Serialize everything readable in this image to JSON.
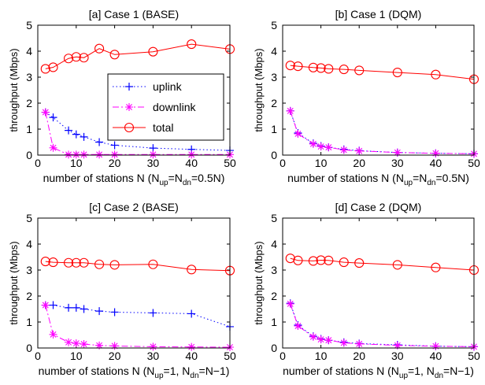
{
  "chart_data": [
    {
      "type": "line",
      "title": "[a] Case 1 (BASE)",
      "xlabel_main": "number of stations N (N",
      "xlabel_sub1": "up",
      "xlabel_mid": "=N",
      "xlabel_sub2": "dn",
      "xlabel_end": "=0.5N)",
      "ylabel": "throughput (Mbps)",
      "xlim": [
        0,
        50
      ],
      "ylim": [
        0,
        5
      ],
      "xticks": [
        0,
        10,
        20,
        30,
        40,
        50
      ],
      "yticks": [
        0,
        1,
        2,
        3,
        4,
        5
      ],
      "legend": {
        "placement": "center-right",
        "entries": [
          "uplink",
          "downlink",
          "total"
        ]
      },
      "series": [
        {
          "name": "uplink",
          "color": "#0000ff",
          "marker": "plus",
          "dash": "dotted",
          "x": [
            2,
            4,
            8,
            10,
            12,
            16,
            20,
            30,
            40,
            50
          ],
          "y": [
            1.65,
            1.45,
            0.95,
            0.8,
            0.7,
            0.5,
            0.38,
            0.27,
            0.22,
            0.18
          ]
        },
        {
          "name": "downlink",
          "color": "#ff00ff",
          "marker": "star",
          "dash": "dashdot",
          "x": [
            2,
            4,
            8,
            10,
            12,
            16,
            20,
            30,
            40,
            50
          ],
          "y": [
            1.65,
            0.28,
            0.02,
            0.02,
            0.02,
            0.02,
            0.02,
            0.02,
            0.02,
            0.02
          ]
        },
        {
          "name": "total",
          "color": "#ff0000",
          "marker": "circle",
          "dash": "solid",
          "x": [
            2,
            4,
            8,
            10,
            12,
            16,
            20,
            30,
            40,
            50
          ],
          "y": [
            3.32,
            3.38,
            3.72,
            3.78,
            3.75,
            4.1,
            3.87,
            3.98,
            4.27,
            4.08
          ]
        }
      ]
    },
    {
      "type": "line",
      "title": "[b] Case 1 (DQM)",
      "xlabel_main": "number of stations N (N",
      "xlabel_sub1": "up",
      "xlabel_mid": "=N",
      "xlabel_sub2": "dn",
      "xlabel_end": "=0.5N)",
      "ylabel": "throughput (Mbps)",
      "xlim": [
        0,
        50
      ],
      "ylim": [
        0,
        5
      ],
      "xticks": [
        0,
        10,
        20,
        30,
        40,
        50
      ],
      "yticks": [
        0,
        1,
        2,
        3,
        4,
        5
      ],
      "legend": null,
      "series": [
        {
          "color": "#0000ff",
          "marker": "plus",
          "dash": "dotted",
          "x": [
            2,
            4,
            8,
            10,
            12,
            16,
            20,
            30,
            40,
            50
          ],
          "y": [
            1.7,
            0.85,
            0.45,
            0.35,
            0.3,
            0.22,
            0.17,
            0.1,
            0.07,
            0.05
          ]
        },
        {
          "color": "#ff00ff",
          "marker": "star",
          "dash": "dashdot",
          "x": [
            2,
            4,
            8,
            10,
            12,
            16,
            20,
            30,
            40,
            50
          ],
          "y": [
            1.7,
            0.82,
            0.43,
            0.33,
            0.3,
            0.2,
            0.16,
            0.1,
            0.07,
            0.05
          ]
        },
        {
          "color": "#ff0000",
          "marker": "circle",
          "dash": "solid",
          "x": [
            2,
            4,
            8,
            10,
            12,
            16,
            20,
            30,
            40,
            50
          ],
          "y": [
            3.45,
            3.42,
            3.37,
            3.35,
            3.32,
            3.3,
            3.26,
            3.18,
            3.1,
            2.92
          ]
        }
      ]
    },
    {
      "type": "line",
      "title": "[c] Case 2 (BASE)",
      "xlabel_main": "number of stations N (N",
      "xlabel_sub1": "up",
      "xlabel_mid": "=1, N",
      "xlabel_sub2": "dn",
      "xlabel_end": "=N−1)",
      "ylabel": "throughput (Mbps)",
      "xlim": [
        0,
        50
      ],
      "ylim": [
        0,
        5
      ],
      "xticks": [
        0,
        10,
        20,
        30,
        40,
        50
      ],
      "yticks": [
        0,
        1,
        2,
        3,
        4,
        5
      ],
      "legend": null,
      "series": [
        {
          "color": "#0000ff",
          "marker": "plus",
          "dash": "dotted",
          "x": [
            2,
            4,
            8,
            10,
            12,
            16,
            20,
            30,
            40,
            50
          ],
          "y": [
            1.65,
            1.65,
            1.55,
            1.55,
            1.5,
            1.42,
            1.38,
            1.35,
            1.32,
            0.82
          ]
        },
        {
          "color": "#ff00ff",
          "marker": "star",
          "dash": "dashdot",
          "x": [
            2,
            4,
            8,
            10,
            12,
            16,
            20,
            30,
            40,
            50
          ],
          "y": [
            1.65,
            0.52,
            0.22,
            0.18,
            0.15,
            0.1,
            0.08,
            0.05,
            0.04,
            0.03
          ]
        },
        {
          "color": "#ff0000",
          "marker": "circle",
          "dash": "solid",
          "x": [
            2,
            4,
            8,
            10,
            12,
            16,
            20,
            30,
            40,
            50
          ],
          "y": [
            3.33,
            3.3,
            3.28,
            3.28,
            3.28,
            3.22,
            3.2,
            3.22,
            3.02,
            2.98
          ]
        }
      ]
    },
    {
      "type": "line",
      "title": "[d] Case 2 (DQM)",
      "xlabel_main": "number of stations N (N",
      "xlabel_sub1": "up",
      "xlabel_mid": "=1, N",
      "xlabel_sub2": "dn",
      "xlabel_end": "=N−1)",
      "ylabel": "throughput (Mbps)",
      "xlim": [
        0,
        50
      ],
      "ylim": [
        0,
        5
      ],
      "xticks": [
        0,
        10,
        20,
        30,
        40,
        50
      ],
      "yticks": [
        0,
        1,
        2,
        3,
        4,
        5
      ],
      "legend": null,
      "series": [
        {
          "color": "#0000ff",
          "marker": "plus",
          "dash": "dotted",
          "x": [
            2,
            4,
            8,
            10,
            12,
            16,
            20,
            30,
            40,
            50
          ],
          "y": [
            1.72,
            0.88,
            0.45,
            0.35,
            0.3,
            0.22,
            0.17,
            0.12,
            0.07,
            0.05
          ]
        },
        {
          "color": "#ff00ff",
          "marker": "star",
          "dash": "dashdot",
          "x": [
            2,
            4,
            8,
            10,
            12,
            16,
            20,
            30,
            40,
            50
          ],
          "y": [
            1.7,
            0.85,
            0.43,
            0.33,
            0.3,
            0.2,
            0.16,
            0.1,
            0.07,
            0.05
          ]
        },
        {
          "color": "#ff0000",
          "marker": "circle",
          "dash": "solid",
          "x": [
            2,
            4,
            8,
            10,
            12,
            16,
            20,
            30,
            40,
            50
          ],
          "y": [
            3.45,
            3.37,
            3.35,
            3.38,
            3.37,
            3.3,
            3.27,
            3.2,
            3.1,
            3.0
          ]
        }
      ]
    }
  ]
}
